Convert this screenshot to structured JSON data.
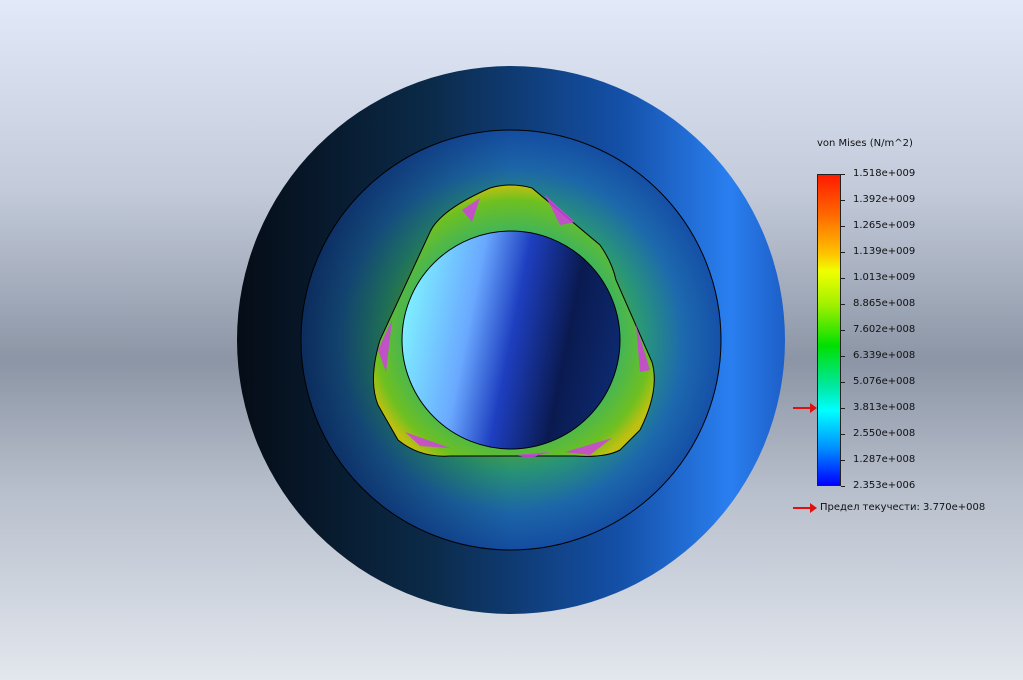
{
  "legend": {
    "title": "von Mises (N/m^2)",
    "ticks": [
      "1.518e+009",
      "1.392e+009",
      "1.265e+009",
      "1.139e+009",
      "1.013e+009",
      "8.865e+008",
      "7.602e+008",
      "6.339e+008",
      "5.076e+008",
      "3.813e+008",
      "2.550e+008",
      "1.287e+008",
      "2.353e+006"
    ],
    "yield_label": "Предел текучести: 3.770e+008",
    "yield_value": 377000000,
    "max_value": 1518000000,
    "min_value": 2353000,
    "colors": {
      "max": "#ff1a00",
      "mid": "#00e000",
      "min": "#0000ff",
      "marker": "#e01010"
    }
  }
}
